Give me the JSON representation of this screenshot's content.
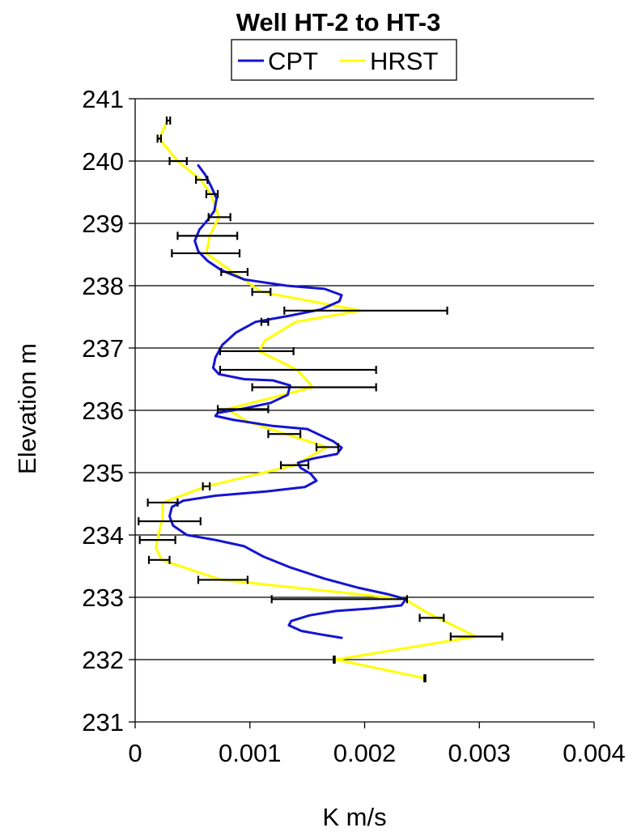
{
  "chart_data": {
    "type": "line",
    "title": "Well HT-2 to HT-3",
    "xlabel": "K m/s",
    "ylabel": "Elevation m",
    "xlim": [
      0,
      0.004
    ],
    "ylim": [
      231,
      241
    ],
    "x_ticks": [
      "0",
      "0.001",
      "0.002",
      "0.003",
      "0.004"
    ],
    "y_ticks": [
      "231",
      "232",
      "233",
      "234",
      "235",
      "236",
      "237",
      "238",
      "239",
      "240",
      "241"
    ],
    "grid": "horizontal",
    "legend": {
      "position": "top",
      "entries": [
        "CPT",
        "HRST"
      ]
    },
    "series": [
      {
        "name": "CPT",
        "color": "#1414d2",
        "points": [
          [
            0.00055,
            239.93
          ],
          [
            0.00061,
            239.78
          ],
          [
            0.00066,
            239.6
          ],
          [
            0.00071,
            239.4
          ],
          [
            0.00069,
            239.2
          ],
          [
            0.00063,
            239.05
          ],
          [
            0.00056,
            238.9
          ],
          [
            0.00052,
            238.72
          ],
          [
            0.00055,
            238.55
          ],
          [
            0.00063,
            238.4
          ],
          [
            0.00075,
            238.25
          ],
          [
            0.00095,
            238.1
          ],
          [
            0.00132,
            238.0
          ],
          [
            0.00165,
            237.95
          ],
          [
            0.0018,
            237.85
          ],
          [
            0.00178,
            237.75
          ],
          [
            0.00162,
            237.62
          ],
          [
            0.00135,
            237.52
          ],
          [
            0.00105,
            237.42
          ],
          [
            0.00088,
            237.25
          ],
          [
            0.00076,
            237.05
          ],
          [
            0.0007,
            236.85
          ],
          [
            0.00068,
            236.68
          ],
          [
            0.00073,
            236.58
          ],
          [
            0.00095,
            236.5
          ],
          [
            0.0012,
            236.48
          ],
          [
            0.00135,
            236.4
          ],
          [
            0.00133,
            236.25
          ],
          [
            0.00118,
            236.12
          ],
          [
            0.00095,
            236.03
          ],
          [
            0.00072,
            235.96
          ],
          [
            0.0007,
            235.91
          ],
          [
            0.00085,
            235.85
          ],
          [
            0.0012,
            235.75
          ],
          [
            0.0015,
            235.7
          ],
          [
            0.00173,
            235.5
          ],
          [
            0.0018,
            235.4
          ],
          [
            0.00176,
            235.3
          ],
          [
            0.00156,
            235.23
          ],
          [
            0.00142,
            235.16
          ],
          [
            0.00144,
            235.08
          ],
          [
            0.00153,
            234.98
          ],
          [
            0.00158,
            234.87
          ],
          [
            0.00148,
            234.77
          ],
          [
            0.00115,
            234.7
          ],
          [
            0.0007,
            234.63
          ],
          [
            0.00042,
            234.55
          ],
          [
            0.00032,
            234.45
          ],
          [
            0.0003,
            234.3
          ],
          [
            0.00033,
            234.15
          ],
          [
            0.00045,
            234.0
          ],
          [
            0.0007,
            233.92
          ],
          [
            0.00095,
            233.82
          ],
          [
            0.00112,
            233.65
          ],
          [
            0.00135,
            233.48
          ],
          [
            0.00165,
            233.3
          ],
          [
            0.00195,
            233.15
          ],
          [
            0.0022,
            233.05
          ],
          [
            0.00236,
            232.97
          ],
          [
            0.00232,
            232.87
          ],
          [
            0.00205,
            232.82
          ],
          [
            0.00175,
            232.78
          ],
          [
            0.00152,
            232.71
          ],
          [
            0.00136,
            232.62
          ],
          [
            0.00134,
            232.55
          ],
          [
            0.00145,
            232.46
          ],
          [
            0.00163,
            232.4
          ],
          [
            0.0018,
            232.35
          ]
        ]
      },
      {
        "name": "HRST",
        "color": "#ffff00",
        "points": [
          [
            0.00028,
            240.65
          ],
          [
            0.00021,
            240.36
          ],
          [
            0.00037,
            240.0
          ],
          [
            0.00057,
            239.7
          ],
          [
            0.00066,
            239.47
          ],
          [
            0.00073,
            239.1
          ],
          [
            0.00065,
            238.8
          ],
          [
            0.00062,
            238.52
          ],
          [
            0.00085,
            238.22
          ],
          [
            0.0011,
            237.9
          ],
          [
            0.00197,
            237.6
          ],
          [
            0.0014,
            237.42
          ],
          [
            0.00113,
            237.12
          ],
          [
            0.00108,
            236.95
          ],
          [
            0.00141,
            236.65
          ],
          [
            0.00155,
            236.37
          ],
          [
            0.0008,
            236.02
          ],
          [
            0.00098,
            235.82
          ],
          [
            0.00131,
            235.62
          ],
          [
            0.00167,
            235.41
          ],
          [
            0.00139,
            235.12
          ],
          [
            0.00062,
            234.78
          ],
          [
            0.00024,
            234.52
          ],
          [
            0.00024,
            234.28
          ],
          [
            0.00021,
            234.06
          ],
          [
            0.00018,
            233.8
          ],
          [
            0.00023,
            233.6
          ],
          [
            0.00075,
            233.28
          ],
          [
            0.00235,
            232.97
          ],
          [
            0.00255,
            232.75
          ],
          [
            0.00297,
            232.37
          ],
          [
            0.00175,
            232.0
          ],
          [
            0.00253,
            231.7
          ]
        ]
      }
    ],
    "error_bars": [
      {
        "y": 240.65,
        "xmin": 0.000275,
        "xmax": 0.000305
      },
      {
        "y": 240.36,
        "xmin": 0.000195,
        "xmax": 0.000225
      },
      {
        "y": 240.0,
        "xmin": 0.0003,
        "xmax": 0.00045
      },
      {
        "y": 239.7,
        "xmin": 0.00053,
        "xmax": 0.00063
      },
      {
        "y": 239.47,
        "xmin": 0.00062,
        "xmax": 0.00072
      },
      {
        "y": 239.1,
        "xmin": 0.00064,
        "xmax": 0.00083
      },
      {
        "y": 238.8,
        "xmin": 0.00037,
        "xmax": 0.00089
      },
      {
        "y": 238.52,
        "xmin": 0.00032,
        "xmax": 0.00091
      },
      {
        "y": 238.22,
        "xmin": 0.00075,
        "xmax": 0.00098
      },
      {
        "y": 237.9,
        "xmin": 0.00102,
        "xmax": 0.00118
      },
      {
        "y": 237.6,
        "xmin": 0.0013,
        "xmax": 0.00272
      },
      {
        "y": 237.42,
        "xmin": 0.0011,
        "xmax": 0.00116
      },
      {
        "y": 236.95,
        "xmin": 0.00074,
        "xmax": 0.00138
      },
      {
        "y": 236.65,
        "xmin": 0.00074,
        "xmax": 0.0021
      },
      {
        "y": 236.37,
        "xmin": 0.00102,
        "xmax": 0.0021
      },
      {
        "y": 236.02,
        "xmin": 0.00072,
        "xmax": 0.00116
      },
      {
        "y": 235.62,
        "xmin": 0.00116,
        "xmax": 0.00144
      },
      {
        "y": 235.41,
        "xmin": 0.00158,
        "xmax": 0.00177
      },
      {
        "y": 235.12,
        "xmin": 0.00127,
        "xmax": 0.00151
      },
      {
        "y": 234.78,
        "xmin": 0.00059,
        "xmax": 0.00065
      },
      {
        "y": 234.52,
        "xmin": 0.00011,
        "xmax": 0.00037
      },
      {
        "y": 234.22,
        "xmin": 3e-05,
        "xmax": 0.00057
      },
      {
        "y": 233.92,
        "xmin": 4e-05,
        "xmax": 0.00035
      },
      {
        "y": 233.6,
        "xmin": 0.00012,
        "xmax": 0.0003
      },
      {
        "y": 233.28,
        "xmin": 0.00055,
        "xmax": 0.00098
      },
      {
        "y": 232.97,
        "xmin": 0.00119,
        "xmax": 0.00237
      },
      {
        "y": 232.67,
        "xmin": 0.00248,
        "xmax": 0.00269
      },
      {
        "y": 232.37,
        "xmin": 0.00275,
        "xmax": 0.0032
      },
      {
        "y": 232.0,
        "xmin": 0.00173,
        "xmax": 0.00174
      },
      {
        "y": 231.7,
        "xmin": 0.00252,
        "xmax": 0.00253
      }
    ]
  }
}
